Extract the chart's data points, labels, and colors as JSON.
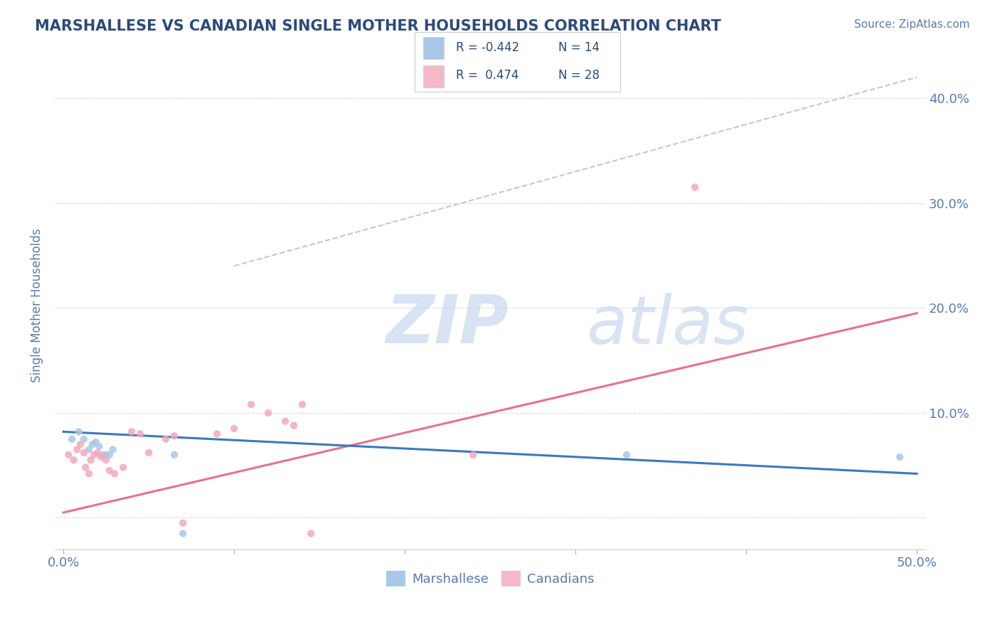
{
  "title": "MARSHALLESE VS CANADIAN SINGLE MOTHER HOUSEHOLDS CORRELATION CHART",
  "source": "Source: ZipAtlas.com",
  "ylabel": "Single Mother Households",
  "xlim": [
    -0.005,
    0.505
  ],
  "ylim": [
    -0.03,
    0.435
  ],
  "yticks": [
    0.0,
    0.1,
    0.2,
    0.3,
    0.4
  ],
  "xticks": [
    0.0,
    0.1,
    0.2,
    0.3,
    0.4,
    0.5
  ],
  "marshallese_scatter": {
    "x": [
      0.005,
      0.009,
      0.012,
      0.015,
      0.017,
      0.019,
      0.021,
      0.023,
      0.025,
      0.027,
      0.029,
      0.065,
      0.07,
      0.33,
      0.49
    ],
    "y": [
      0.075,
      0.082,
      0.075,
      0.065,
      0.07,
      0.072,
      0.068,
      0.06,
      0.06,
      0.06,
      0.065,
      0.06,
      -0.015,
      0.06,
      0.058
    ],
    "color": "#a8c8e8",
    "size": 55,
    "alpha": 0.85
  },
  "canadian_scatter": {
    "x": [
      0.003,
      0.006,
      0.008,
      0.01,
      0.012,
      0.013,
      0.015,
      0.016,
      0.018,
      0.02,
      0.022,
      0.025,
      0.027,
      0.03,
      0.035,
      0.04,
      0.045,
      0.05,
      0.06,
      0.065,
      0.07,
      0.09,
      0.1,
      0.11,
      0.12,
      0.13,
      0.135,
      0.14,
      0.145,
      0.24,
      0.37
    ],
    "y": [
      0.06,
      0.055,
      0.065,
      0.07,
      0.062,
      0.048,
      0.042,
      0.055,
      0.06,
      0.062,
      0.058,
      0.055,
      0.045,
      0.042,
      0.048,
      0.082,
      0.08,
      0.062,
      0.075,
      0.078,
      -0.005,
      0.08,
      0.085,
      0.108,
      0.1,
      0.092,
      0.088,
      0.108,
      -0.015,
      0.06,
      0.315
    ],
    "color": "#f4a8bc",
    "size": 55,
    "alpha": 0.85
  },
  "marshallese_line": {
    "x": [
      0.0,
      0.5
    ],
    "y": [
      0.082,
      0.042
    ],
    "color": "#3a7abf",
    "linewidth": 2.2
  },
  "canadian_line": {
    "x": [
      0.0,
      0.5
    ],
    "y": [
      0.005,
      0.195
    ],
    "color": "#e87090",
    "linewidth": 2.2
  },
  "trendline_dashed": {
    "x": [
      0.1,
      0.5
    ],
    "y": [
      0.24,
      0.42
    ],
    "color": "#c8c8c8",
    "linewidth": 1.5,
    "linestyle": "--"
  },
  "bg_color": "#ffffff",
  "grid_color": "#d8dce8",
  "title_color": "#2c4a7c",
  "axis_label_color": "#5a7ab0",
  "tick_color": "#5a7ab0",
  "source_color": "#5a7ab0",
  "legend_box_color": "#a8c8e8",
  "legend_box_color2": "#f4b8c8",
  "legend_labels": [
    "Marshallese",
    "Canadians"
  ],
  "legend_colors": [
    "#a8c8e8",
    "#f4b8c8"
  ]
}
